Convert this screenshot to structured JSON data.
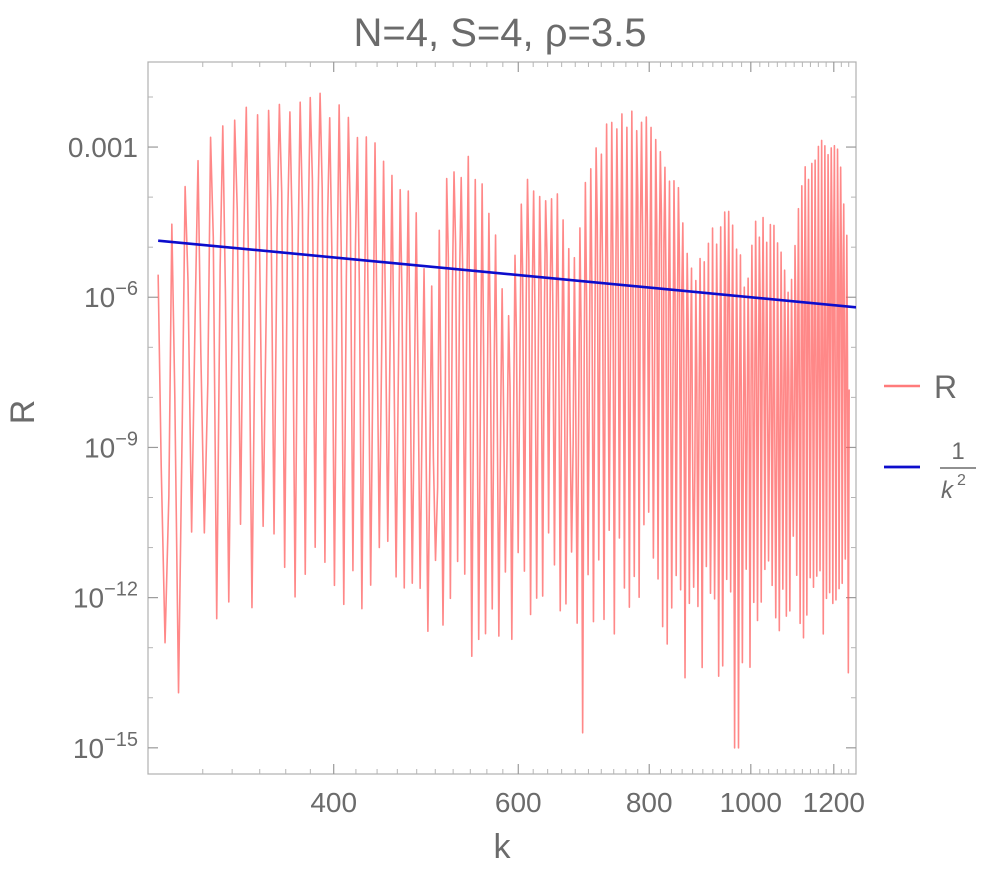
{
  "chart_data": {
    "type": "line",
    "title": "N=4, S=4, ρ=3.5",
    "xlabel": "k",
    "ylabel": "R",
    "xscale": "log",
    "yscale": "log",
    "xlim": [
      266,
      1260
    ],
    "ylim": [
      3e-16,
      0.05
    ],
    "xticks": [
      {
        "value": 400,
        "label": "400"
      },
      {
        "value": 600,
        "label": "600"
      },
      {
        "value": 800,
        "label": "800"
      },
      {
        "value": 1000,
        "label": "1000"
      },
      {
        "value": 1200,
        "label": "1200"
      }
    ],
    "yticks": [
      {
        "value": 0.001,
        "mantissa": "0.001",
        "exp": ""
      },
      {
        "value": 1e-06,
        "mantissa": "10",
        "exp": "−6"
      },
      {
        "value": 1e-09,
        "mantissa": "10",
        "exp": "−9"
      },
      {
        "value": 1e-12,
        "mantissa": "10",
        "exp": "−12"
      },
      {
        "value": 1e-15,
        "mantissa": "10",
        "exp": "−15"
      }
    ],
    "legend_position": "right",
    "series": [
      {
        "name": "R",
        "legend_label": "R",
        "color": "#ff5a5a",
        "style": "oscillating",
        "k_range": [
          272,
          1240
        ],
        "oscillation_period_k": 8.3,
        "envelope_peaks_log10": [
          [
            272,
            -5.5
          ],
          [
            290,
            -3.3
          ],
          [
            320,
            -2.0
          ],
          [
            350,
            -1.8
          ],
          [
            370,
            -1.8
          ],
          [
            390,
            -1.9
          ],
          [
            430,
            -2.6
          ],
          [
            470,
            -3.8
          ],
          [
            495,
            -5.4
          ],
          [
            515,
            -3.4
          ],
          [
            540,
            -3.1
          ],
          [
            565,
            -3.9
          ],
          [
            585,
            -6.0
          ],
          [
            610,
            -3.5
          ],
          [
            650,
            -3.6
          ],
          [
            680,
            -4.9
          ],
          [
            700,
            -3.0
          ],
          [
            740,
            -2.4
          ],
          [
            770,
            -2.2
          ],
          [
            800,
            -2.4
          ],
          [
            850,
            -3.5
          ],
          [
            880,
            -5.4
          ],
          [
            920,
            -4.6
          ],
          [
            950,
            -3.9
          ],
          [
            990,
            -5.4
          ],
          [
            1010,
            -4.3
          ],
          [
            1050,
            -4.5
          ],
          [
            1090,
            -5.6
          ],
          [
            1120,
            -3.3
          ],
          [
            1170,
            -2.6
          ],
          [
            1210,
            -3.0
          ],
          [
            1240,
            -4.9
          ]
        ],
        "envelope_floor_log10": [
          [
            272,
            -11.5
          ],
          [
            350,
            -11.8
          ],
          [
            430,
            -11.5
          ],
          [
            500,
            -12.0
          ],
          [
            560,
            -12.5
          ],
          [
            600,
            -11.8
          ],
          [
            700,
            -12.0
          ],
          [
            800,
            -11.5
          ],
          [
            850,
            -12.5
          ],
          [
            950,
            -12.8
          ],
          [
            1100,
            -12.0
          ],
          [
            1240,
            -12.0
          ]
        ],
        "deep_dips": [
          {
            "k": 275,
            "log10": -12.9
          },
          {
            "k": 280,
            "log10": -13.9
          },
          {
            "k": 690,
            "log10": -14.7
          },
          {
            "k": 860,
            "log10": -13.6
          },
          {
            "k": 965,
            "log10": -15.0
          },
          {
            "k": 1235,
            "log10": -13.5
          }
        ]
      },
      {
        "name": "1/k^2",
        "legend_label_num": "1",
        "legend_label_den": "k",
        "legend_label_exp": "2",
        "color": "#0d0dcc",
        "formula": "1/k^2",
        "x": [
          272,
          1260
        ],
        "y": [
          1.35e-05,
          6.3e-07
        ]
      }
    ]
  }
}
